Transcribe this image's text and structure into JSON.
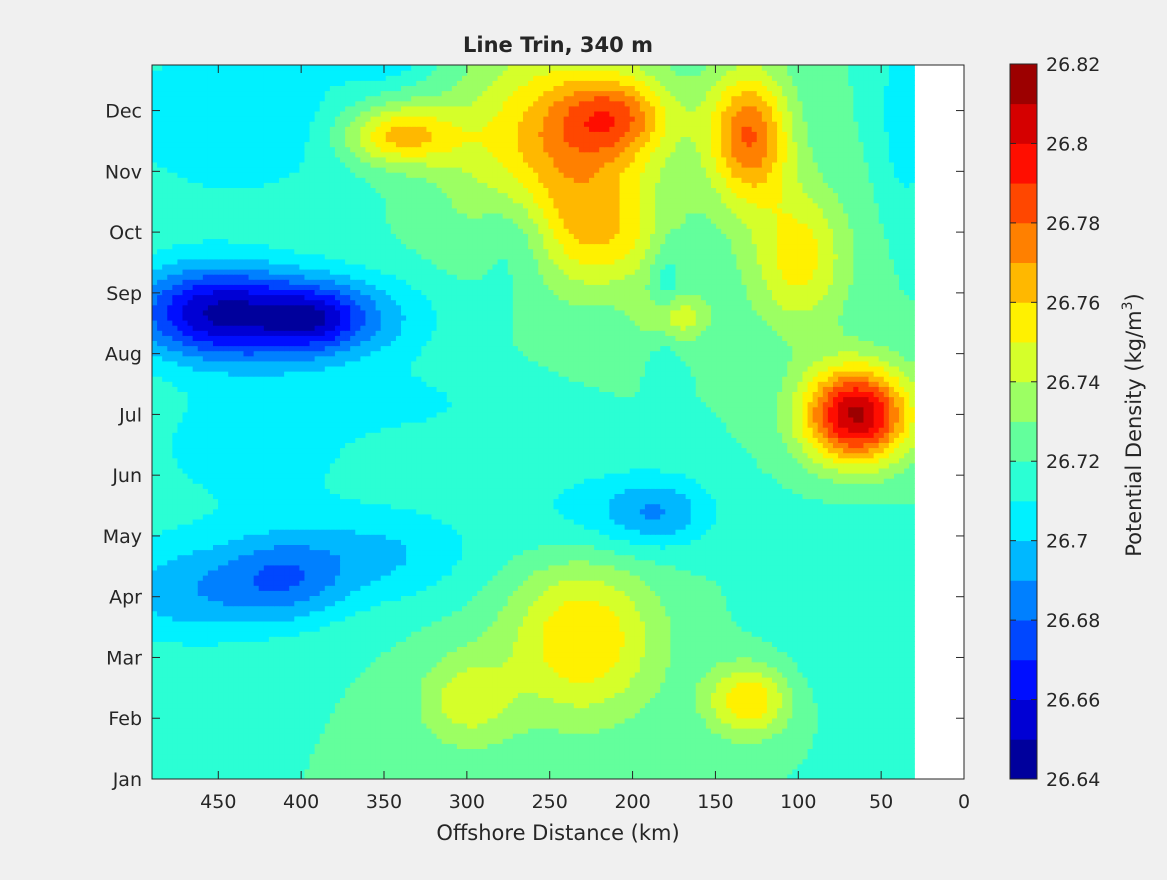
{
  "chart_data": {
    "type": "heatmap",
    "subtype": "filled-contour",
    "title": "Line Trin, 340 m",
    "xlabel": "Offshore Distance (km)",
    "ylabel": "",
    "xlim": [
      490,
      0
    ],
    "x_reversed": true,
    "x_ticks": [
      "450",
      "400",
      "350",
      "300",
      "250",
      "200",
      "150",
      "100",
      "50",
      "0"
    ],
    "y_ticks": [
      "Jan",
      "Feb",
      "Mar",
      "Apr",
      "May",
      "Jun",
      "Jul",
      "Aug",
      "Sep",
      "Oct",
      "Nov",
      "Dec"
    ],
    "data_x_extent": [
      490,
      30
    ],
    "colorbar": {
      "label": "Potential Density (kg/m",
      "label_superscript": "3",
      "label_close": ")",
      "min": 26.64,
      "max": 26.82,
      "step": 0.01,
      "tick_labels": [
        "26.64",
        "26.66",
        "26.68",
        "26.7",
        "26.72",
        "26.74",
        "26.76",
        "26.78",
        "26.8",
        "26.82"
      ],
      "colormap": "jet"
    },
    "field": {
      "background": 26.72,
      "features": [
        {
          "x": 470,
          "m": 3.1,
          "v": -0.025,
          "sx": 55,
          "sy": 0.9
        },
        {
          "x": 410,
          "m": 3.3,
          "v": -0.03,
          "sx": 40,
          "sy": 0.75
        },
        {
          "x": 415,
          "m": 7.6,
          "v": -0.057,
          "sx": 75,
          "sy": 0.75
        },
        {
          "x": 390,
          "m": 7.6,
          "v": -0.02,
          "sx": 25,
          "sy": 0.45
        },
        {
          "x": 460,
          "m": 7.8,
          "v": -0.03,
          "sx": 45,
          "sy": 0.8
        },
        {
          "x": 430,
          "m": 5.5,
          "v": -0.015,
          "sx": 75,
          "sy": 1.2
        },
        {
          "x": 350,
          "m": 3.7,
          "v": -0.02,
          "sx": 55,
          "sy": 0.8
        },
        {
          "x": 270,
          "m": 9.0,
          "v": -0.02,
          "sx": 25,
          "sy": 1.0
        },
        {
          "x": 440,
          "m": 10.9,
          "v": -0.02,
          "sx": 75,
          "sy": 1.4
        },
        {
          "x": 350,
          "m": 12.0,
          "v": -0.02,
          "sx": 30,
          "sy": 0.5
        },
        {
          "x": 215,
          "m": 4.4,
          "v": -0.015,
          "sx": 65,
          "sy": 0.8
        },
        {
          "x": 185,
          "m": 4.4,
          "v": -0.02,
          "sx": 30,
          "sy": 0.55
        },
        {
          "x": 35,
          "m": 11.0,
          "v": -0.02,
          "sx": 15,
          "sy": 1.5
        },
        {
          "x": 330,
          "m": 6.2,
          "v": -0.01,
          "sx": 60,
          "sy": 0.6
        },
        {
          "x": 250,
          "m": 10.3,
          "v": 0.045,
          "sx": 55,
          "sy": 1.8
        },
        {
          "x": 210,
          "m": 10.9,
          "v": 0.045,
          "sx": 35,
          "sy": 0.7
        },
        {
          "x": 340,
          "m": 10.6,
          "v": 0.045,
          "sx": 35,
          "sy": 0.5
        },
        {
          "x": 130,
          "m": 10.6,
          "v": 0.06,
          "sx": 25,
          "sy": 1.1
        },
        {
          "x": 100,
          "m": 8.6,
          "v": 0.035,
          "sx": 30,
          "sy": 1.2
        },
        {
          "x": 65,
          "m": 6.0,
          "v": 0.092,
          "sx": 32,
          "sy": 0.8
        },
        {
          "x": 175,
          "m": 7.6,
          "v": 0.03,
          "sx": 20,
          "sy": 0.4
        },
        {
          "x": 215,
          "m": 9.0,
          "v": 0.025,
          "sx": 40,
          "sy": 1.0
        },
        {
          "x": 230,
          "m": 2.3,
          "v": 0.04,
          "sx": 45,
          "sy": 1.3
        },
        {
          "x": 130,
          "m": 1.3,
          "v": 0.04,
          "sx": 25,
          "sy": 0.6
        },
        {
          "x": 300,
          "m": 1.3,
          "v": 0.025,
          "sx": 30,
          "sy": 0.8
        },
        {
          "x": 180,
          "m": 8.0,
          "v": -0.015,
          "sx": 10,
          "sy": 1.0
        },
        {
          "x": 70,
          "m": 2.8,
          "v": -0.01,
          "sx": 45,
          "sy": 1.5
        }
      ]
    }
  }
}
